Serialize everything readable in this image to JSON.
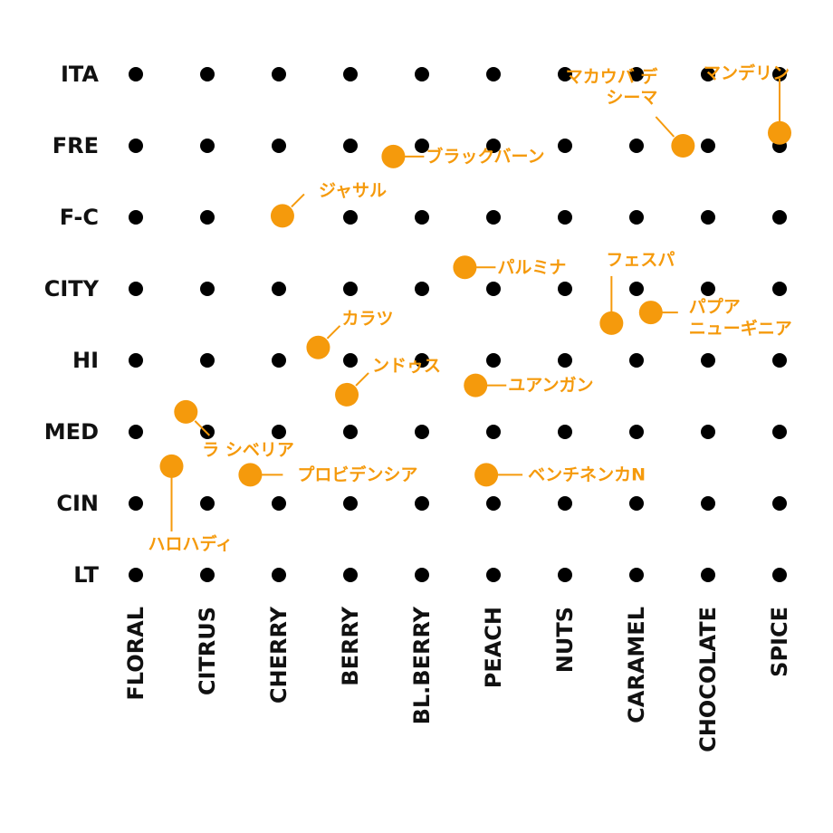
{
  "chart_data": {
    "type": "scatter",
    "x_categories": [
      "FLORAL",
      "CITRUS",
      "CHERRY",
      "BERRY",
      "BL.BERRY",
      "PEACH",
      "NUTS",
      "CARAMEL",
      "CHOCOLATE",
      "SPICE"
    ],
    "y_categories": [
      "ITA",
      "FRE",
      "F-C",
      "CITY",
      "HI",
      "MED",
      "CIN",
      "LT"
    ],
    "grid": true,
    "colors": {
      "grid_dot": "#000000",
      "point": "#f59a0c",
      "label": "#f59a0c",
      "text": "#111111"
    },
    "points": [
      {
        "label": "マンデリン",
        "x": 9.0,
        "y": 0.82
      },
      {
        "label": "マカウバ デ\nシーマ",
        "x": 7.65,
        "y": 1.0
      },
      {
        "label": "ブラックバーン",
        "x": 3.6,
        "y": 1.15
      },
      {
        "label": "ジャサル",
        "x": 2.05,
        "y": 1.98
      },
      {
        "label": "パルミナ",
        "x": 4.6,
        "y": 2.7
      },
      {
        "label": "フェスパ",
        "x": 6.65,
        "y": 3.48
      },
      {
        "label": "パプア\nニューギニア",
        "x": 7.2,
        "y": 3.33
      },
      {
        "label": "カラツ",
        "x": 2.55,
        "y": 3.82
      },
      {
        "label": "ンドゥス",
        "x": 2.95,
        "y": 4.48
      },
      {
        "label": "ユアンガン",
        "x": 4.75,
        "y": 4.35
      },
      {
        "label": "ラ シベリア",
        "x": 0.7,
        "y": 4.72
      },
      {
        "label": "ハロハディ",
        "x": 0.5,
        "y": 5.48
      },
      {
        "label": "プロビデンシア",
        "x": 1.6,
        "y": 5.6
      },
      {
        "label": "ベンチネンカN",
        "x": 4.9,
        "y": 5.6
      }
    ]
  }
}
